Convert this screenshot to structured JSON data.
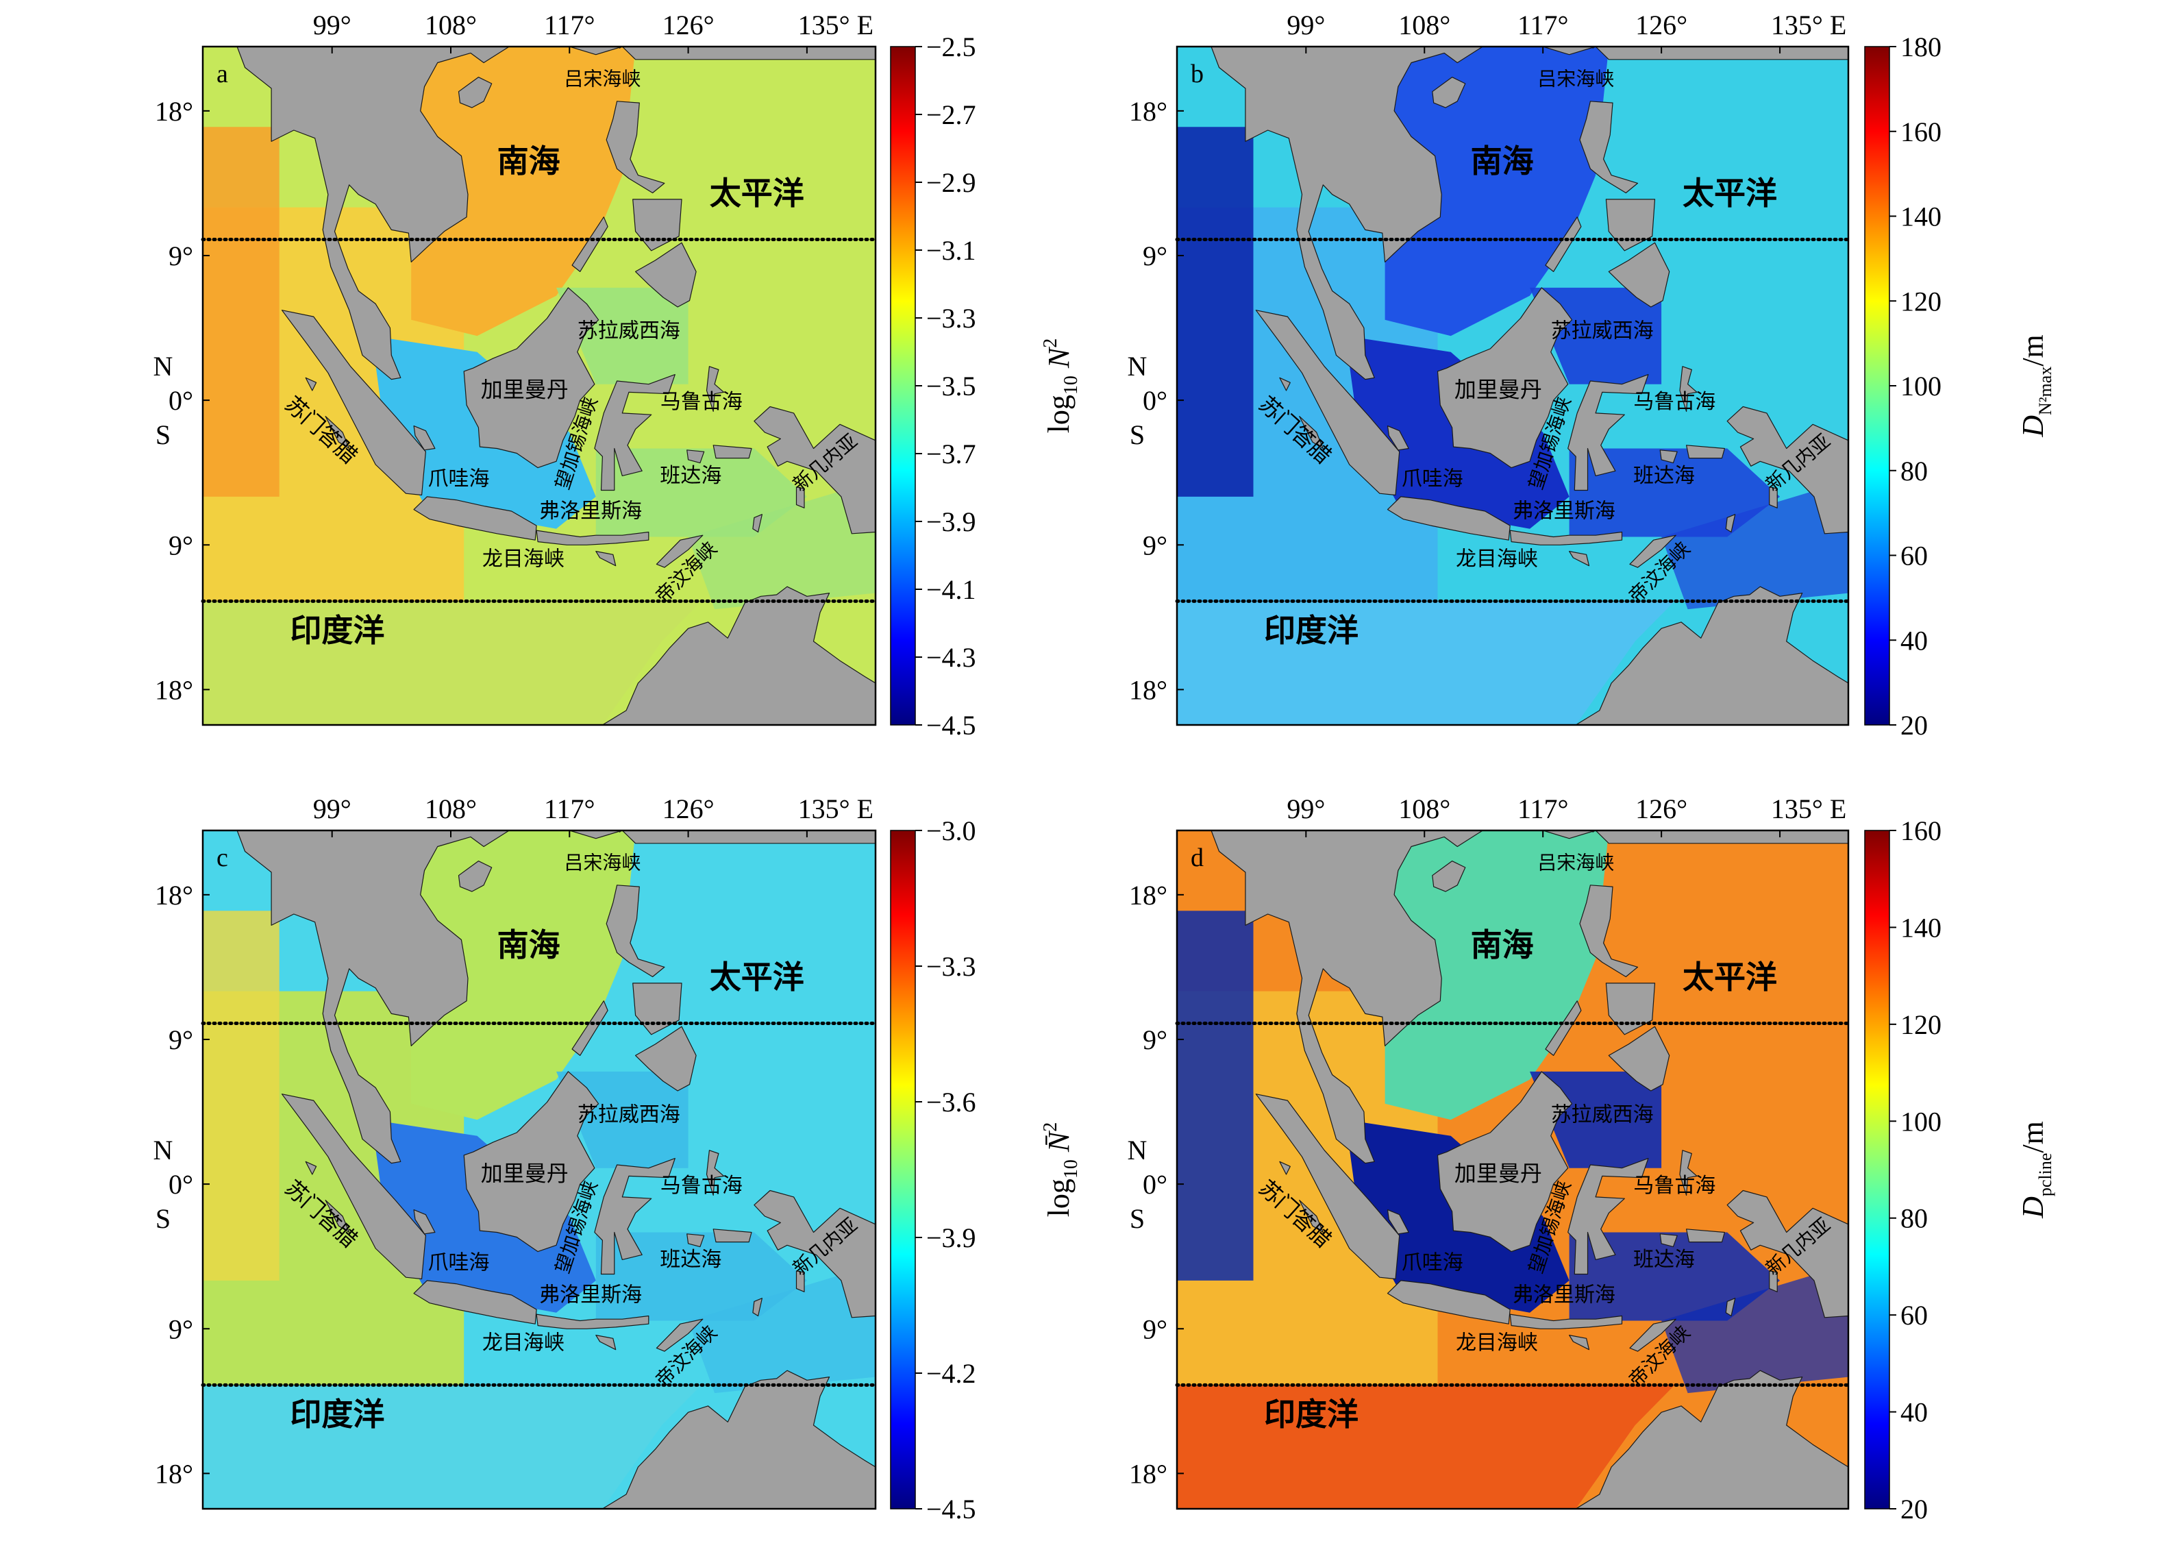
{
  "lon_ticks": [
    "99°",
    "108°",
    "117°",
    "126°",
    "135° E"
  ],
  "lat_ticks": [
    "18°",
    "9°",
    "0°",
    "9°",
    "18°"
  ],
  "hemisphere_labels": [
    "N",
    "S"
  ],
  "region_labels": {
    "scs": "南海",
    "pacific": "太平洋",
    "indian": "印度洋",
    "luzon": "吕宋海峡",
    "sulawesi": "苏拉威西海",
    "kalimantan": "加里曼丹",
    "molucca": "马鲁古海",
    "sumatra": "苏门答腊",
    "java": "爪哇海",
    "makassar": "望加锡海峡",
    "banda": "班达海",
    "flores": "弗洛里斯海",
    "lombok": "龙目海峡",
    "timor": "帝汶海峡",
    "newguinea": "新几内亚"
  },
  "panels": [
    {
      "letter": "a",
      "colorbar": {
        "ticks": [
          "−2.5",
          "−2.7",
          "−2.9",
          "−3.1",
          "−3.3",
          "−3.5",
          "−3.7",
          "−3.9",
          "−4.1",
          "−4.3",
          "−4.5"
        ],
        "label_main": "log",
        "label_sub": "10",
        "label_var": "N",
        "label_sup": "2",
        "colormap": "jet-reversed-range"
      },
      "field": {
        "scs": "#f6b230",
        "pacific": "#c6e85a",
        "indian": "#f2d040",
        "indian_south": "#c6e35e",
        "west_indian": "#f7a02a",
        "seas": "#9be37c",
        "java": "#3cc0ee"
      }
    },
    {
      "letter": "b",
      "colorbar": {
        "ticks": [
          "180",
          "160",
          "140",
          "120",
          "100",
          "80",
          "60",
          "40",
          "20"
        ],
        "label_main": "D",
        "label_sub": "N²max",
        "label_unit": "/m"
      },
      "field": {
        "scs": "#1f54e6",
        "pacific": "#39cfe6",
        "indian": "#3fb6ef",
        "indian_south": "#50c2f2",
        "west_indian": "#0b1fa8",
        "seas": "#1a40d8",
        "java": "#1430c6"
      }
    },
    {
      "letter": "c",
      "colorbar": {
        "ticks": [
          "−3.0",
          "−3.3",
          "−3.6",
          "−3.9",
          "−4.2",
          "−4.5"
        ],
        "label_main": "log",
        "label_sub": "10",
        "label_var": "N̄",
        "label_sup": "2"
      },
      "field": {
        "scs": "#b6e65c",
        "pacific": "#4ad6ea",
        "indian": "#b8e35a",
        "indian_south": "#54d5e6",
        "west_indian": "#e8d848",
        "seas": "#3cbce8",
        "java": "#2a78e6"
      }
    },
    {
      "letter": "d",
      "colorbar": {
        "ticks": [
          "160",
          "140",
          "120",
          "100",
          "80",
          "60",
          "40",
          "20"
        ],
        "label_main": "D",
        "label_sub": "pcline",
        "label_unit": "/m"
      },
      "field": {
        "scs": "#57d6a8",
        "pacific": "#f48a22",
        "indian": "#f5b630",
        "indian_south": "#ec5a18",
        "west_indian": "#0b2aa8",
        "seas": "#0c2ab4",
        "java": "#0a1c9a"
      }
    }
  ]
}
